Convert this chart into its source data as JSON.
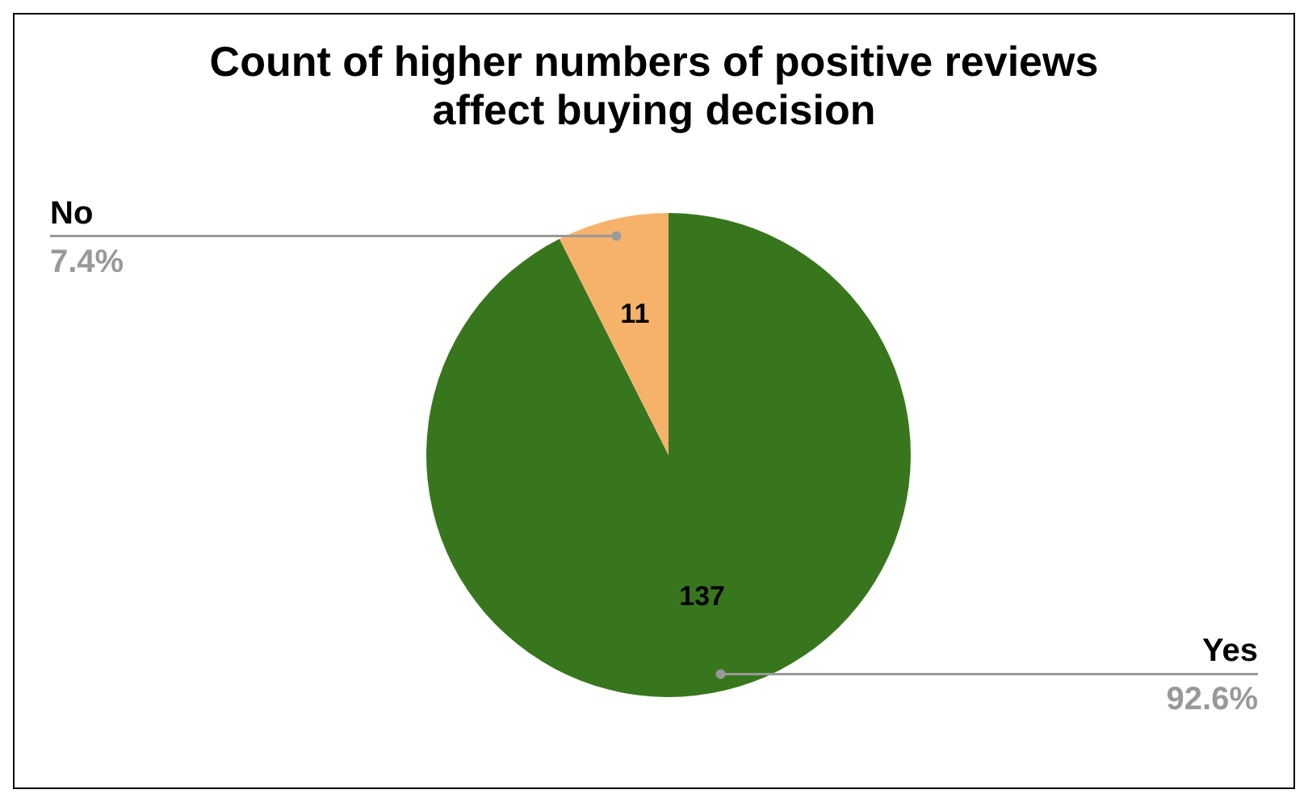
{
  "chart_data": {
    "type": "pie",
    "title": "Count of higher numbers of positive reviews affect buying decision",
    "categories": [
      "Yes",
      "No"
    ],
    "values": [
      137,
      11
    ],
    "colors": [
      "#38761d",
      "#f6b26b"
    ],
    "data_labels": true,
    "annotations": [
      "92.6%",
      "7.4%"
    ],
    "legend": false
  }
}
